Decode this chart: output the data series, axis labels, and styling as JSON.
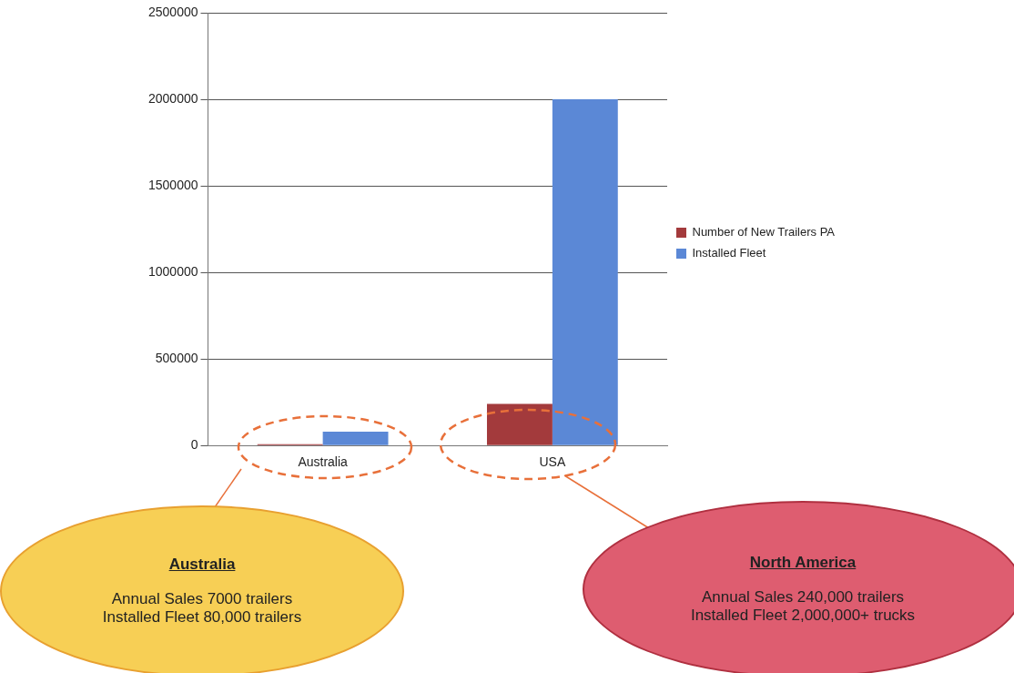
{
  "chart_data": {
    "type": "bar",
    "categories": [
      "Australia",
      "USA"
    ],
    "series": [
      {
        "name": "Number of New Trailers PA",
        "color": "#a33a3c",
        "values": [
          7000,
          240000
        ]
      },
      {
        "name": "Installed Fleet",
        "color": "#5b88d6",
        "values": [
          80000,
          2000000
        ]
      }
    ],
    "ylim": [
      0,
      2500000
    ],
    "yticks": [
      0,
      500000,
      1000000,
      1500000,
      2000000,
      2500000
    ],
    "grid": "y",
    "legend": "right",
    "annotations": [
      "Australia",
      "Annual Sales 7000 trailers",
      "Installed Fleet 80,000 trailers",
      "North America",
      "Annual Sales 240,000 trailers",
      "Installed Fleet 2,000,000+ trucks"
    ]
  }
}
